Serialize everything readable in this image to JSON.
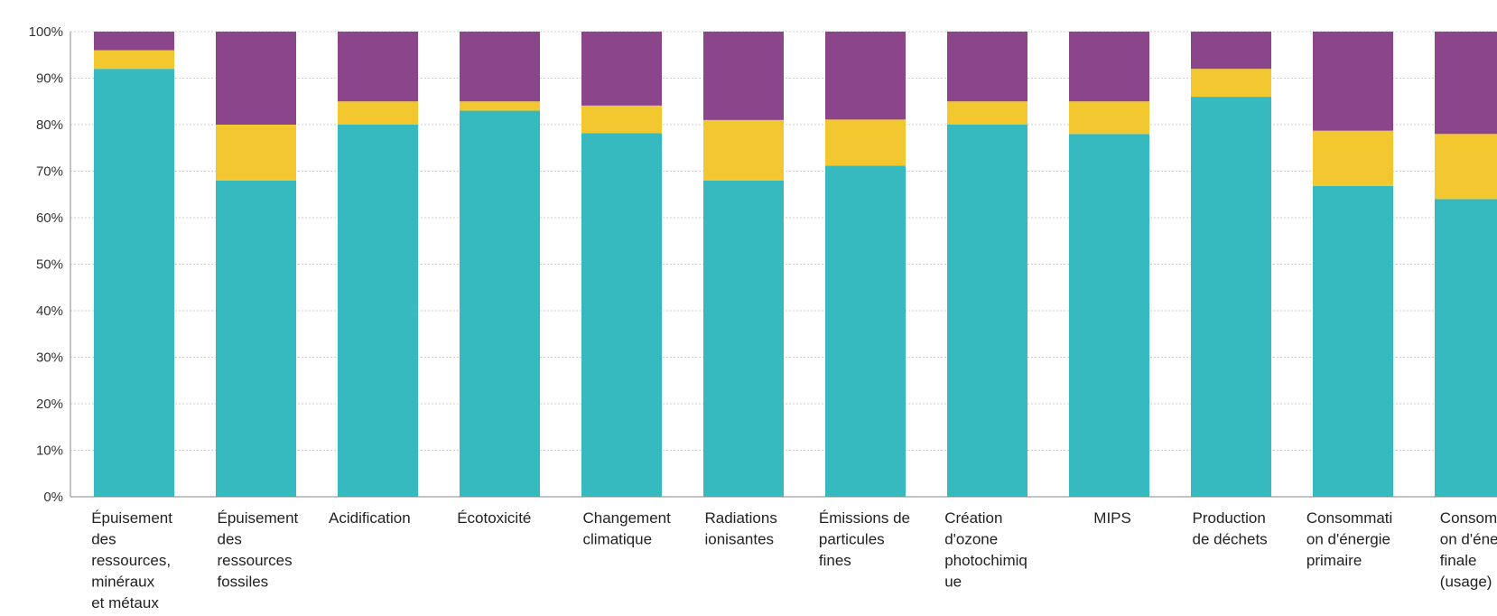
{
  "chart_data": {
    "type": "bar",
    "stacked": true,
    "categories": [
      "Épuisement des ressources, minéraux et métaux",
      "Épuisement des ressources fossiles",
      "Acidification",
      "Écotoxicité",
      "Changement climatique",
      "Radiations ionisantes",
      "Émissions de particules fines",
      "Création d'ozone photochimique",
      "MIPS",
      "Production de déchets",
      "Consommation d'énergie primaire",
      "Consommation d'énergie finale (usage)"
    ],
    "category_label_lines": [
      [
        "Épuisement",
        "des",
        "ressources,",
        "minéraux",
        "et métaux"
      ],
      [
        "Épuisement",
        "des",
        "ressources",
        "fossiles"
      ],
      [
        "Acidification"
      ],
      [
        "Écotoxicité"
      ],
      [
        "Changement",
        "climatique"
      ],
      [
        "Radiations",
        "ionisantes"
      ],
      [
        "Émissions de",
        "particules",
        "fines"
      ],
      [
        "Création",
        "d'ozone",
        "photochimiq",
        "ue"
      ],
      [
        "MIPS"
      ],
      [
        "Production",
        "de déchets"
      ],
      [
        "Consommati",
        "on d'énergie",
        "primaire"
      ],
      [
        "Consomma",
        "on d'éner",
        "finale",
        "(usage)"
      ]
    ],
    "series": [
      {
        "values": [
          92,
          68,
          80,
          83,
          78.2,
          68,
          71.2,
          80,
          78,
          86,
          66.8,
          64
        ],
        "color": "#36b9bf"
      },
      {
        "values": [
          4,
          12,
          5,
          2,
          5.9,
          13,
          9.9,
          5,
          7,
          6,
          11.9,
          14
        ],
        "color": "#f2c730"
      },
      {
        "values": [
          4,
          20,
          15,
          15,
          15.9,
          19,
          18.9,
          15,
          15,
          8,
          21.3,
          22
        ],
        "color": "#8b468b"
      }
    ],
    "y_ticks": [
      "0%",
      "10%",
      "20%",
      "30%",
      "40%",
      "50%",
      "60%",
      "70%",
      "80%",
      "90%",
      "100%"
    ],
    "ylim": [
      0,
      100
    ],
    "grid": true,
    "title": "",
    "xlabel": "",
    "ylabel": ""
  }
}
